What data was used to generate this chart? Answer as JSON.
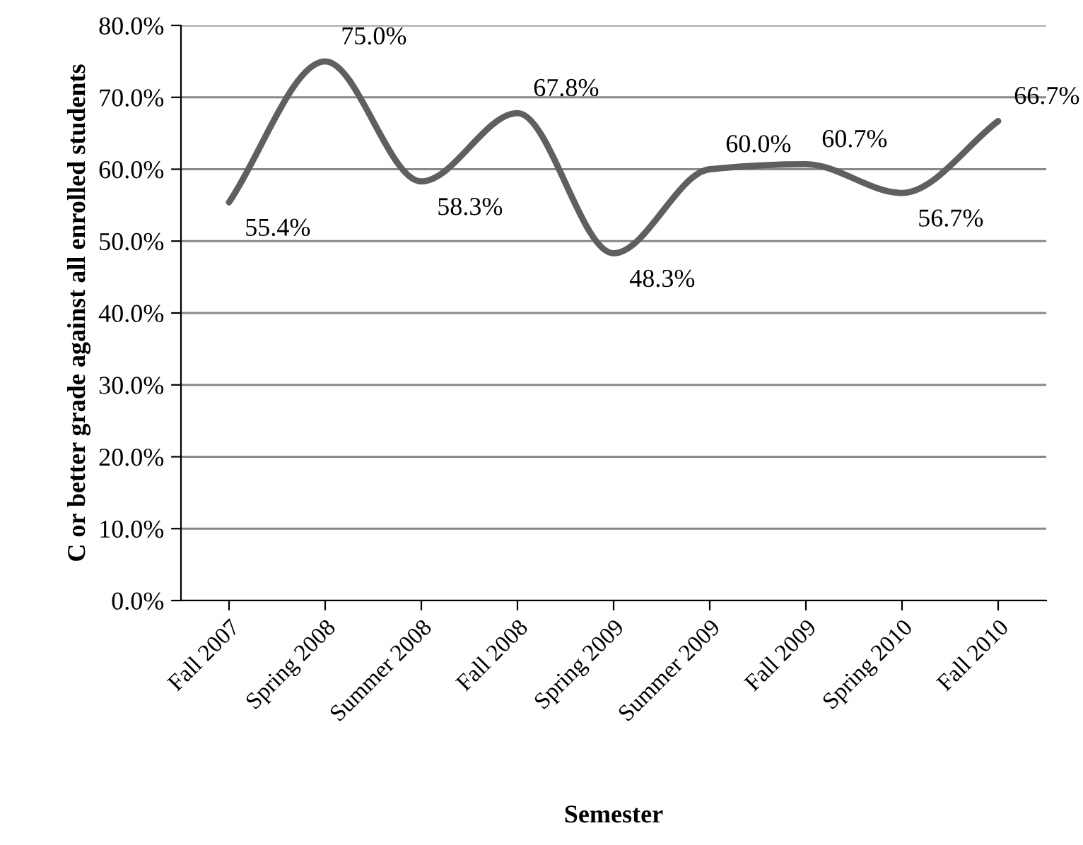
{
  "chart_data": {
    "type": "line",
    "xlabel": "Semester",
    "ylabel": "C or better grade against all enrolled students",
    "categories": [
      "Fall 2007",
      "Spring 2008",
      "Summer 2008",
      "Fall 2008",
      "Spring 2009",
      "Summer 2009",
      "Fall 2009",
      "Spring 2010",
      "Fall 2010"
    ],
    "series": [
      {
        "color": "#5f5f5f",
        "values": [
          55.4,
          75.0,
          58.3,
          67.8,
          48.3,
          60.0,
          60.7,
          56.7,
          66.7
        ],
        "value_labels": [
          "55.4%",
          "75.0%",
          "58.3%",
          "67.8%",
          "48.3%",
          "60.0%",
          "60.7%",
          "56.7%",
          "66.7%"
        ]
      }
    ],
    "ylim": [
      0,
      80
    ],
    "yticks": [
      {
        "value": 0,
        "label": "0.0%"
      },
      {
        "value": 10,
        "label": "10.0%"
      },
      {
        "value": 20,
        "label": "20.0%"
      },
      {
        "value": 30,
        "label": "30.0%"
      },
      {
        "value": 40,
        "label": "40.0%"
      },
      {
        "value": 50,
        "label": "50.0%"
      },
      {
        "value": 60,
        "label": "60.0%"
      },
      {
        "value": 70,
        "label": "70.0%"
      },
      {
        "value": 80,
        "label": "80.0%"
      }
    ],
    "grid": "y",
    "marker": "none",
    "line_style": "solid",
    "legend": false
  }
}
